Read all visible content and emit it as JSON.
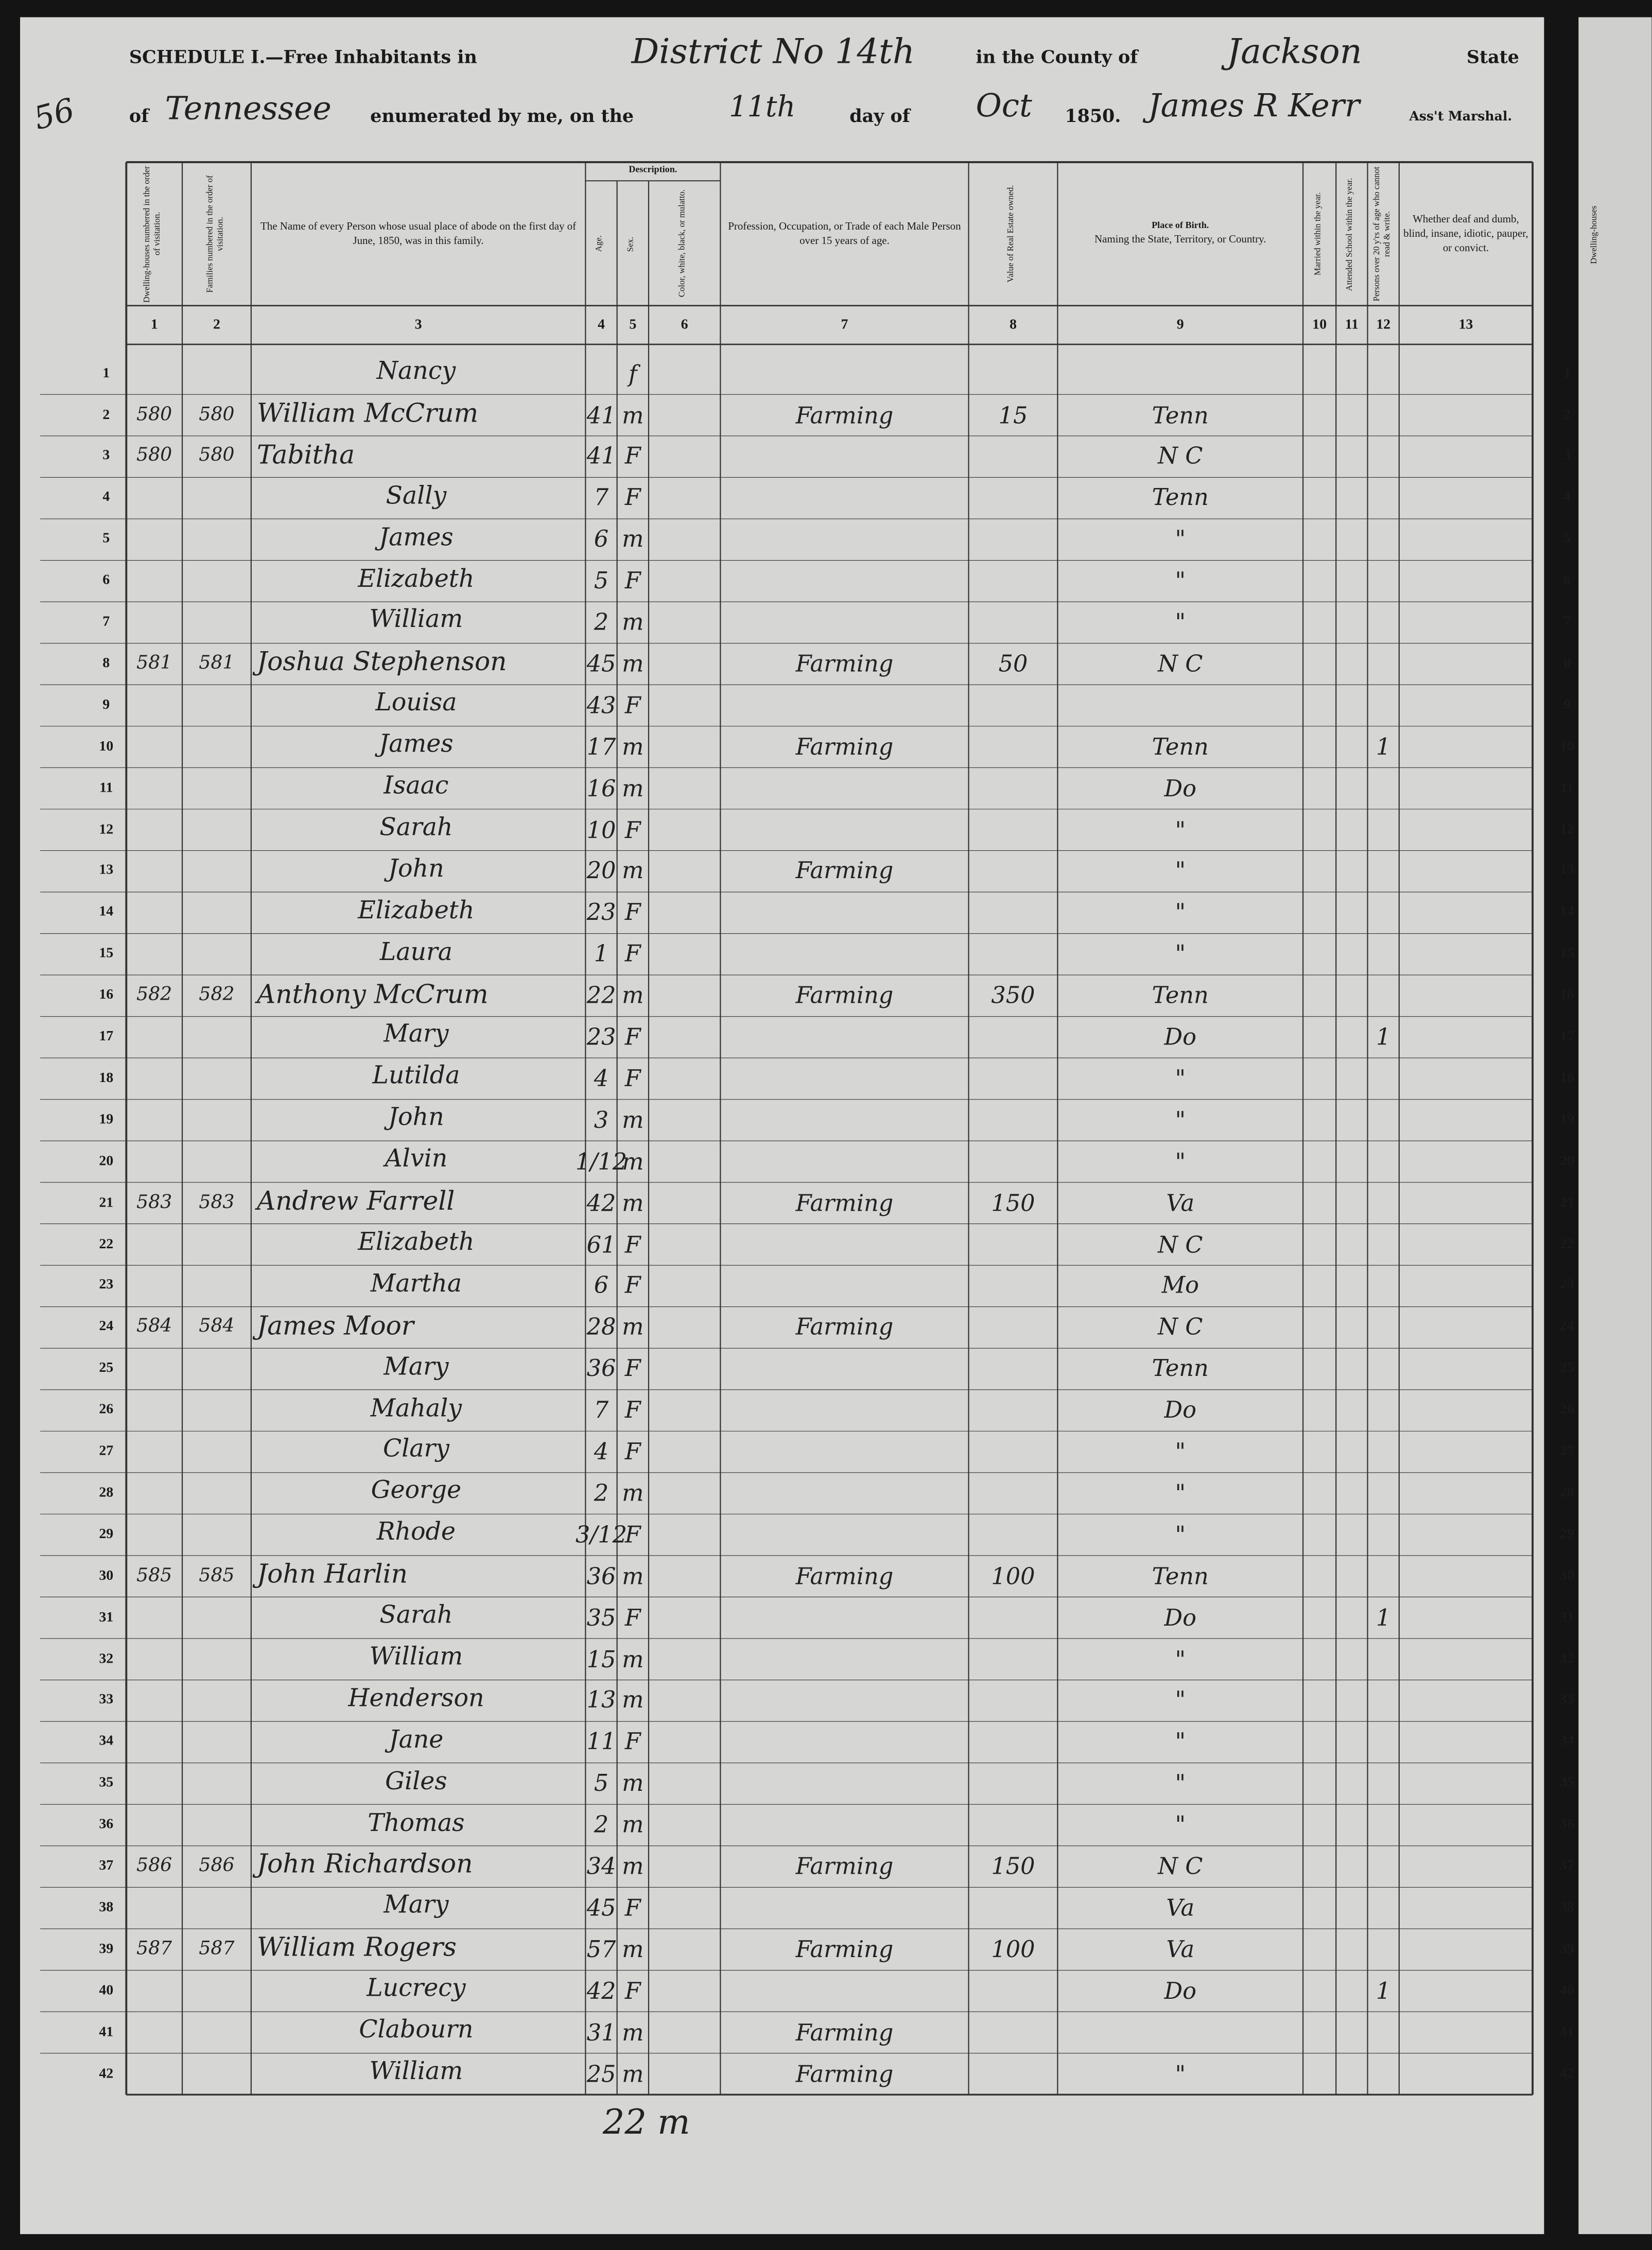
{
  "header": {
    "schedule": "SCHEDULE I.—Free Inhabitants in",
    "district": "District No 14th",
    "county_label": "in the County of",
    "county": "Jackson",
    "state_label": "State",
    "of": "of",
    "state": "Tennessee",
    "enumerated": "enumerated by me, on the",
    "day": "11th",
    "day_of": "day of",
    "month": "Oct",
    "year": "1850.",
    "marshal": "James R Kerr",
    "marshal_label": "Ass't Marshal.",
    "page_number": "56"
  },
  "description": "Description.",
  "columns": [
    {
      "number": "1",
      "label": "Dwelling-houses numbered in the order of visitation."
    },
    {
      "number": "2",
      "label": "Families numbered in the order of visitation."
    },
    {
      "number": "3",
      "label": "The Name of every Person whose usual place of abode on the first day of June, 1850, was in this family."
    },
    {
      "number": "4",
      "label": "Age."
    },
    {
      "number": "5",
      "label": "Sex."
    },
    {
      "number": "6",
      "label": "Color, white, black, or mulatto."
    },
    {
      "number": "7",
      "label": "Profession, Occupation, or Trade of each Male Person over 15 years of age."
    },
    {
      "number": "8",
      "label": "Value of Real Estate owned."
    },
    {
      "number": "9",
      "label": "Place of Birth.",
      "sublabel": "Naming the State, Territory, or Country."
    },
    {
      "number": "10",
      "label": "Married within the year."
    },
    {
      "number": "11",
      "label": "Attended School within the year."
    },
    {
      "number": "12",
      "label": "Persons over 20 y'rs of age who cannot read & write."
    },
    {
      "number": "13",
      "label": "Whether deaf and dumb, blind, insane, idiotic, pauper, or convict."
    }
  ],
  "rows": [
    {
      "line": "1",
      "name": "Nancy",
      "sex": "f"
    },
    {
      "line": "2",
      "dwelling": "580",
      "family": "580",
      "name": "William McCrum",
      "age": "41",
      "sex": "m",
      "occupation": "Farming",
      "real_estate": "15",
      "birthplace": "Tenn"
    },
    {
      "line": "3",
      "dwelling": "580",
      "family": "580",
      "name": "Tabitha",
      "age": "41",
      "sex": "F",
      "birthplace": "N C"
    },
    {
      "line": "4",
      "name": "Sally",
      "age": "7",
      "sex": "F",
      "birthplace": "Tenn"
    },
    {
      "line": "5",
      "name": "James",
      "age": "6",
      "sex": "m",
      "birthplace": "\""
    },
    {
      "line": "6",
      "name": "Elizabeth",
      "age": "5",
      "sex": "F",
      "birthplace": "\""
    },
    {
      "line": "7",
      "name": "William",
      "age": "2",
      "sex": "m",
      "birthplace": "\""
    },
    {
      "line": "8",
      "dwelling": "581",
      "family": "581",
      "name": "Joshua Stephenson",
      "age": "45",
      "sex": "m",
      "occupation": "Farming",
      "real_estate": "50",
      "birthplace": "N C"
    },
    {
      "line": "9",
      "name": "Louisa",
      "age": "43",
      "sex": "F"
    },
    {
      "line": "10",
      "name": "James",
      "age": "17",
      "sex": "m",
      "occupation": "Farming",
      "birthplace": "Tenn",
      "illiterate": "1"
    },
    {
      "line": "11",
      "name": "Isaac",
      "age": "16",
      "sex": "m",
      "birthplace": "Do"
    },
    {
      "line": "12",
      "name": "Sarah",
      "age": "10",
      "sex": "F",
      "birthplace": "\""
    },
    {
      "line": "13",
      "name": "John",
      "age": "20",
      "sex": "m",
      "occupation": "Farming",
      "birthplace": "\""
    },
    {
      "line": "14",
      "name": "Elizabeth",
      "age": "23",
      "sex": "F",
      "birthplace": "\""
    },
    {
      "line": "15",
      "name": "Laura",
      "age": "1",
      "sex": "F",
      "birthplace": "\""
    },
    {
      "line": "16",
      "dwelling": "582",
      "family": "582",
      "name": "Anthony McCrum",
      "age": "22",
      "sex": "m",
      "occupation": "Farming",
      "real_estate": "350",
      "birthplace": "Tenn"
    },
    {
      "line": "17",
      "name": "Mary",
      "age": "23",
      "sex": "F",
      "birthplace": "Do",
      "illiterate": "1"
    },
    {
      "line": "18",
      "name": "Lutilda",
      "age": "4",
      "sex": "F",
      "birthplace": "\""
    },
    {
      "line": "19",
      "name": "John",
      "age": "3",
      "sex": "m",
      "birthplace": "\""
    },
    {
      "line": "20",
      "name": "Alvin",
      "age": "1/12",
      "sex": "m",
      "birthplace": "\""
    },
    {
      "line": "21",
      "dwelling": "583",
      "family": "583",
      "name": "Andrew Farrell",
      "age": "42",
      "sex": "m",
      "occupation": "Farming",
      "real_estate": "150",
      "birthplace": "Va"
    },
    {
      "line": "22",
      "name": "Elizabeth",
      "age": "61",
      "sex": "F",
      "birthplace": "N C"
    },
    {
      "line": "23",
      "name": "Martha",
      "age": "6",
      "sex": "F",
      "birthplace": "Mo"
    },
    {
      "line": "24",
      "dwelling": "584",
      "family": "584",
      "name": "James Moor",
      "age": "28",
      "sex": "m",
      "occupation": "Farming",
      "birthplace": "N C"
    },
    {
      "line": "25",
      "name": "Mary",
      "age": "36",
      "sex": "F",
      "birthplace": "Tenn"
    },
    {
      "line": "26",
      "name": "Mahaly",
      "age": "7",
      "sex": "F",
      "birthplace": "Do"
    },
    {
      "line": "27",
      "name": "Clary",
      "age": "4",
      "sex": "F",
      "birthplace": "\""
    },
    {
      "line": "28",
      "name": "George",
      "age": "2",
      "sex": "m",
      "birthplace": "\""
    },
    {
      "line": "29",
      "name": "Rhode",
      "age": "3/12",
      "sex": "F",
      "birthplace": "\""
    },
    {
      "line": "30",
      "dwelling": "585",
      "family": "585",
      "name": "John Harlin",
      "age": "36",
      "sex": "m",
      "occupation": "Farming",
      "real_estate": "100",
      "birthplace": "Tenn"
    },
    {
      "line": "31",
      "name": "Sarah",
      "age": "35",
      "sex": "F",
      "birthplace": "Do",
      "illiterate": "1"
    },
    {
      "line": "32",
      "name": "William",
      "age": "15",
      "sex": "m",
      "birthplace": "\""
    },
    {
      "line": "33",
      "name": "Henderson",
      "age": "13",
      "sex": "m",
      "birthplace": "\""
    },
    {
      "line": "34",
      "name": "Jane",
      "age": "11",
      "sex": "F",
      "birthplace": "\""
    },
    {
      "line": "35",
      "name": "Giles",
      "age": "5",
      "sex": "m",
      "birthplace": "\""
    },
    {
      "line": "36",
      "name": "Thomas",
      "age": "2",
      "sex": "m",
      "birthplace": "\""
    },
    {
      "line": "37",
      "dwelling": "586",
      "family": "586",
      "name": "John Richardson",
      "age": "34",
      "sex": "m",
      "occupation": "Farming",
      "real_estate": "150",
      "birthplace": "N C"
    },
    {
      "line": "38",
      "name": "Mary",
      "age": "45",
      "sex": "F",
      "birthplace": "Va"
    },
    {
      "line": "39",
      "dwelling": "587",
      "family": "587",
      "name": "William Rogers",
      "age": "57",
      "sex": "m",
      "occupation": "Farming",
      "real_estate": "100",
      "birthplace": "Va"
    },
    {
      "line": "40",
      "name": "Lucrecy",
      "age": "42",
      "sex": "F",
      "birthplace": "Do",
      "illiterate": "1"
    },
    {
      "line": "41",
      "name": "Clabourn",
      "age": "31",
      "sex": "m",
      "occupation": "Farming"
    },
    {
      "line": "42",
      "name": "William",
      "age": "25",
      "sex": "m",
      "occupation": "Farming",
      "birthplace": "\""
    }
  ],
  "footer": "22 m",
  "next_page": {
    "header": "Dwelling-houses"
  }
}
